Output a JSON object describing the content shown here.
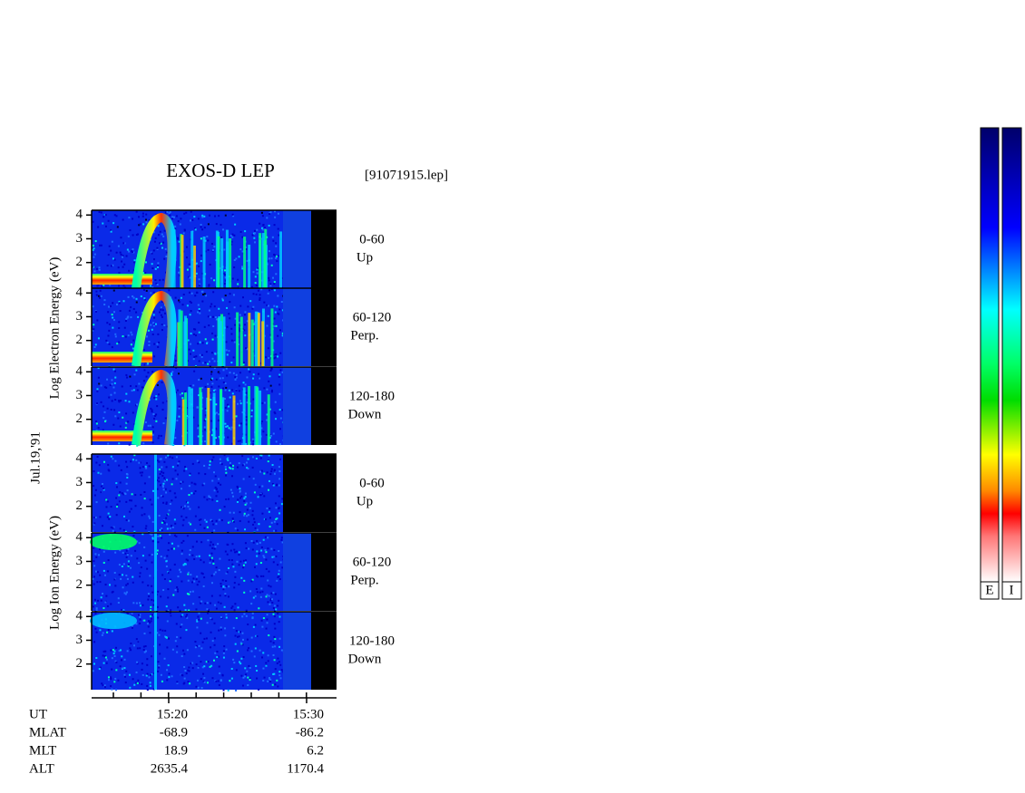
{
  "header": {
    "title": "EXOS-D LEP",
    "file": "[91071915.lep]"
  },
  "date": "Jul.19,'91",
  "axis_labels": {
    "electron": "Log  Electron  Energy (eV)",
    "ion": "Log  Ion  Energy (eV)"
  },
  "energy_ticks": [
    2,
    3,
    4
  ],
  "electron_panels": [
    {
      "angle": "0-60",
      "direction": "Up"
    },
    {
      "angle": "60-120",
      "direction": "Perp."
    },
    {
      "angle": "120-180",
      "direction": "Down"
    }
  ],
  "ion_panels": [
    {
      "angle": "0-60",
      "direction": "Up"
    },
    {
      "angle": "60-120",
      "direction": "Perp."
    },
    {
      "angle": "120-180",
      "direction": "Down"
    }
  ],
  "time_axis": {
    "rows": [
      {
        "name": "UT",
        "values": [
          "15:20",
          "15:30"
        ]
      },
      {
        "name": "MLAT",
        "values": [
          "-68.9",
          "-86.2"
        ]
      },
      {
        "name": "MLT",
        "values": [
          "18.9",
          "6.2"
        ]
      },
      {
        "name": "ALT",
        "values": [
          "2635.4",
          "1170.4"
        ]
      }
    ]
  },
  "colorbar": {
    "labels": [
      "E",
      "I"
    ]
  }
}
